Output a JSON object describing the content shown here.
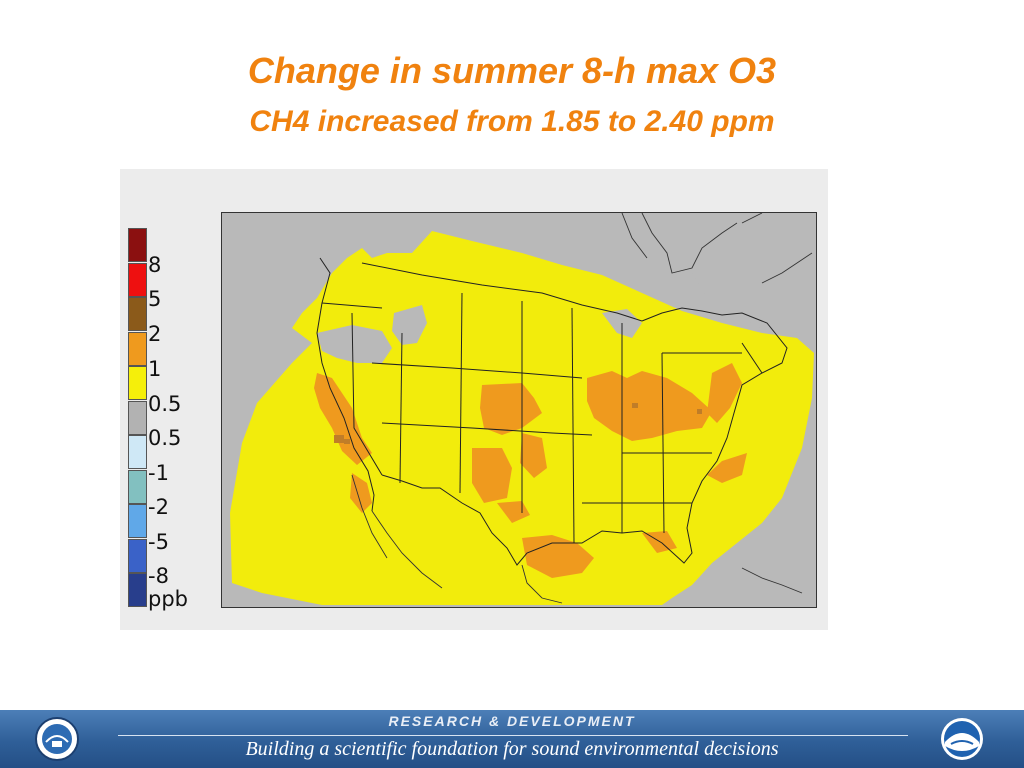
{
  "title": {
    "main": "Change in summer 8-h max O3",
    "sub": "CH4 increased from 1.85 to 2.40 ppm"
  },
  "legend": {
    "unit": "ppb",
    "entries": [
      {
        "label": "",
        "color": "#8b1010"
      },
      {
        "label": "8",
        "color": "#ee1010"
      },
      {
        "label": "5",
        "color": "#8b5a1a"
      },
      {
        "label": "2",
        "color": "#ef9a1e"
      },
      {
        "label": "1",
        "color": "#f5ef0a"
      },
      {
        "label": "0.5",
        "color": "#b2b2b2"
      },
      {
        "label": "0.5",
        "color": "#cfe8f6"
      },
      {
        "label": "-1",
        "color": "#82c0c0"
      },
      {
        "label": "-2",
        "color": "#60a8e8"
      },
      {
        "label": "-5",
        "color": "#3a62c8"
      },
      {
        "label": "-8",
        "color": "#283e8c"
      }
    ]
  },
  "map": {
    "region": "Continental United States",
    "colors": {
      "no_change": "#b9b9b9",
      "low": "#f2ec0c",
      "mid": "#ef9a1e",
      "high": "#c07d28",
      "outline": "#222222"
    }
  },
  "footer": {
    "top": "RESEARCH & DEVELOPMENT",
    "bottom": "Building a scientific foundation for sound environmental decisions",
    "left_logo": "epa-seal-icon",
    "right_logo": "noaa-logo-icon"
  }
}
